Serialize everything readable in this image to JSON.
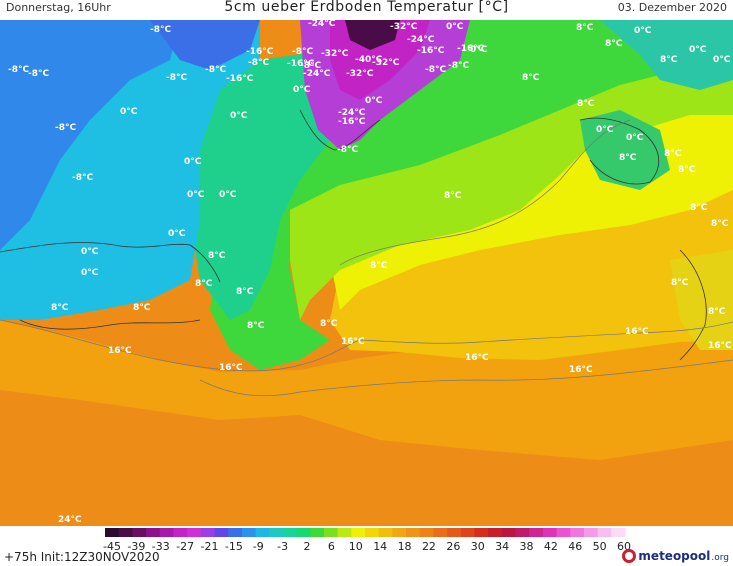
{
  "header": {
    "day_time": "Donnerstag, 16Uhr",
    "title": "5cm ueber Erdboden Temperatur [°C]",
    "date": "03. Dezember 2020"
  },
  "map": {
    "labels": [
      "-8°C",
      "-8°C",
      "-8°C",
      "-8°C",
      "-8°C",
      "-8°C",
      "-8°C",
      "-8°C",
      "-8°C",
      "-8°C",
      "-8°C",
      "-8°C",
      "-8°C",
      "-16°C",
      "-16°C",
      "-16°C",
      "-16°C",
      "-16°C",
      "-16°C",
      "-24°C",
      "-24°C",
      "-24°C",
      "-24°C",
      "-32°C",
      "-32°C",
      "-32°C",
      "-32°C",
      "-40°C",
      "0°C",
      "0°C",
      "0°C",
      "0°C",
      "0°C",
      "0°C",
      "0°C",
      "0°C",
      "0°C",
      "0°C",
      "0°C",
      "0°C",
      "0°C",
      "0°C",
      "0°C",
      "0°C",
      "0°C",
      "8°C",
      "8°C",
      "8°C",
      "8°C",
      "8°C",
      "8°C",
      "8°C",
      "8°C",
      "8°C",
      "8°C",
      "8°C",
      "8°C",
      "8°C",
      "8°C",
      "8°C",
      "8°C",
      "8°C",
      "8°C",
      "8°C",
      "8°C",
      "8°C",
      "16°C",
      "16°C",
      "16°C",
      "16°C",
      "16°C",
      "16°C",
      "16°C",
      "24°C"
    ]
  },
  "colorbar": {
    "ticks": [
      "-45",
      "-39",
      "-33",
      "-27",
      "-21",
      "-15",
      "-9",
      "-3",
      "2",
      "6",
      "10",
      "14",
      "18",
      "22",
      "26",
      "30",
      "34",
      "38",
      "42",
      "46",
      "50",
      "60"
    ],
    "colors": [
      "#2b0a2d",
      "#4a0c46",
      "#6a0e63",
      "#8a128a",
      "#a81aaa",
      "#c223c5",
      "#cf2fd7",
      "#9b3ee6",
      "#6048e8",
      "#3a6fe8",
      "#2a92ec",
      "#1fb7e6",
      "#1ec9c0",
      "#18d39a",
      "#18d970",
      "#3ed93b",
      "#7ae01e",
      "#bce90f",
      "#eef104",
      "#f4d507",
      "#f2be0d",
      "#f0a711",
      "#ef9417",
      "#ee8217",
      "#ea6d18",
      "#e55a1a",
      "#de431c",
      "#d52c1e",
      "#c81d2a",
      "#bb1640",
      "#c01a6a",
      "#d02594",
      "#e032b8",
      "#ea52d1",
      "#f076de",
      "#f49ae8",
      "#f8bef1",
      "#fbdcf7"
    ]
  },
  "footer": {
    "init": "+75h Init:12Z30NOV2020",
    "logo_brand": "meteopool",
    "logo_tld": ".org"
  }
}
